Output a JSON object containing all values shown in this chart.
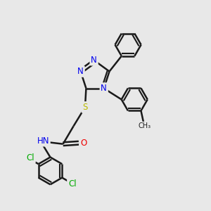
{
  "background_color": "#e8e8e8",
  "bond_color": "#1a1a1a",
  "bond_width": 1.8,
  "atom_colors": {
    "N": "#0000ee",
    "O": "#ee0000",
    "S": "#bbbb00",
    "Cl": "#00aa00",
    "C": "#1a1a1a"
  },
  "font_size": 8.5,
  "fig_width": 3.0,
  "fig_height": 3.0,
  "dpi": 100,
  "xlim": [
    0,
    10
  ],
  "ylim": [
    0,
    10
  ]
}
